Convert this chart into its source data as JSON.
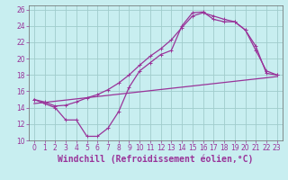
{
  "background_color": "#c8eef0",
  "grid_color": "#a0cccc",
  "line_color": "#993399",
  "xlabel": "Windchill (Refroidissement éolien,°C)",
  "xlim": [
    -0.5,
    23.5
  ],
  "ylim": [
    10,
    26.5
  ],
  "xticks": [
    0,
    1,
    2,
    3,
    4,
    5,
    6,
    7,
    8,
    9,
    10,
    11,
    12,
    13,
    14,
    15,
    16,
    17,
    18,
    19,
    20,
    21,
    22,
    23
  ],
  "yticks": [
    10,
    12,
    14,
    16,
    18,
    20,
    22,
    24,
    26
  ],
  "curve1_x": [
    0,
    1,
    2,
    3,
    4,
    5,
    6,
    7,
    8,
    9,
    10,
    11,
    12,
    13,
    14,
    15,
    16,
    17,
    18,
    19,
    20,
    21,
    22,
    23
  ],
  "curve1_y": [
    15.0,
    14.7,
    14.2,
    14.3,
    14.7,
    15.2,
    15.6,
    16.2,
    17.0,
    18.0,
    19.2,
    20.3,
    21.2,
    22.3,
    23.8,
    25.2,
    25.6,
    25.2,
    24.8,
    24.5,
    23.5,
    21.5,
    18.2,
    18.0
  ],
  "curve2_x": [
    0,
    1,
    2,
    3,
    4,
    5,
    6,
    7,
    8,
    9,
    10,
    11,
    12,
    13,
    14,
    15,
    16,
    17,
    18,
    19,
    20,
    21,
    22,
    23
  ],
  "curve2_y": [
    15.0,
    14.5,
    14.0,
    12.5,
    12.5,
    10.5,
    10.5,
    11.5,
    13.5,
    16.5,
    18.5,
    19.5,
    20.5,
    21.0,
    24.0,
    25.6,
    25.7,
    24.8,
    24.5,
    24.5,
    23.5,
    21.0,
    18.5,
    18.0
  ],
  "curve3_x": [
    0,
    23
  ],
  "curve3_y": [
    14.5,
    17.8
  ],
  "tick_fontsize": 5.5,
  "label_fontsize": 7.0
}
